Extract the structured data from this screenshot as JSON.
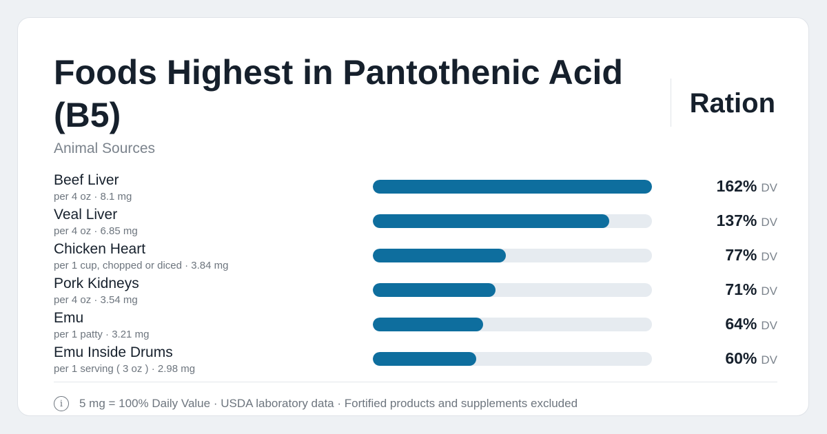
{
  "header": {
    "title": "Foods Highest in Pantothenic Acid (B5)",
    "subtitle": "Animal Sources",
    "brand": "Ration"
  },
  "chart_data": {
    "type": "bar",
    "orientation": "horizontal",
    "max_value": 162,
    "unit_label": "DV",
    "categories": [
      "Beef Liver",
      "Veal Liver",
      "Chicken Heart",
      "Pork Kidneys",
      "Emu",
      "Emu Inside Drums"
    ],
    "details": [
      "per 4 oz · 8.1 mg",
      "per 4 oz · 6.85 mg",
      "per 1 cup, chopped or diced · 3.84 mg",
      "per 4 oz · 3.54 mg",
      "per 1 patty · 3.21 mg",
      "per 1 serving ( 3 oz ) · 2.98 mg"
    ],
    "values": [
      162,
      137,
      77,
      71,
      64,
      60
    ],
    "value_labels": [
      "162%",
      "137%",
      "77%",
      "71%",
      "64%",
      "60%"
    ]
  },
  "footer": {
    "info_icon": "info-icon",
    "info_glyph": "i",
    "note": "5 mg = 100% Daily Value · USDA laboratory data · Fortified products and supplements excluded"
  },
  "colors": {
    "bar_fill": "#0e6e9e",
    "bar_track": "#e6ebf0"
  }
}
